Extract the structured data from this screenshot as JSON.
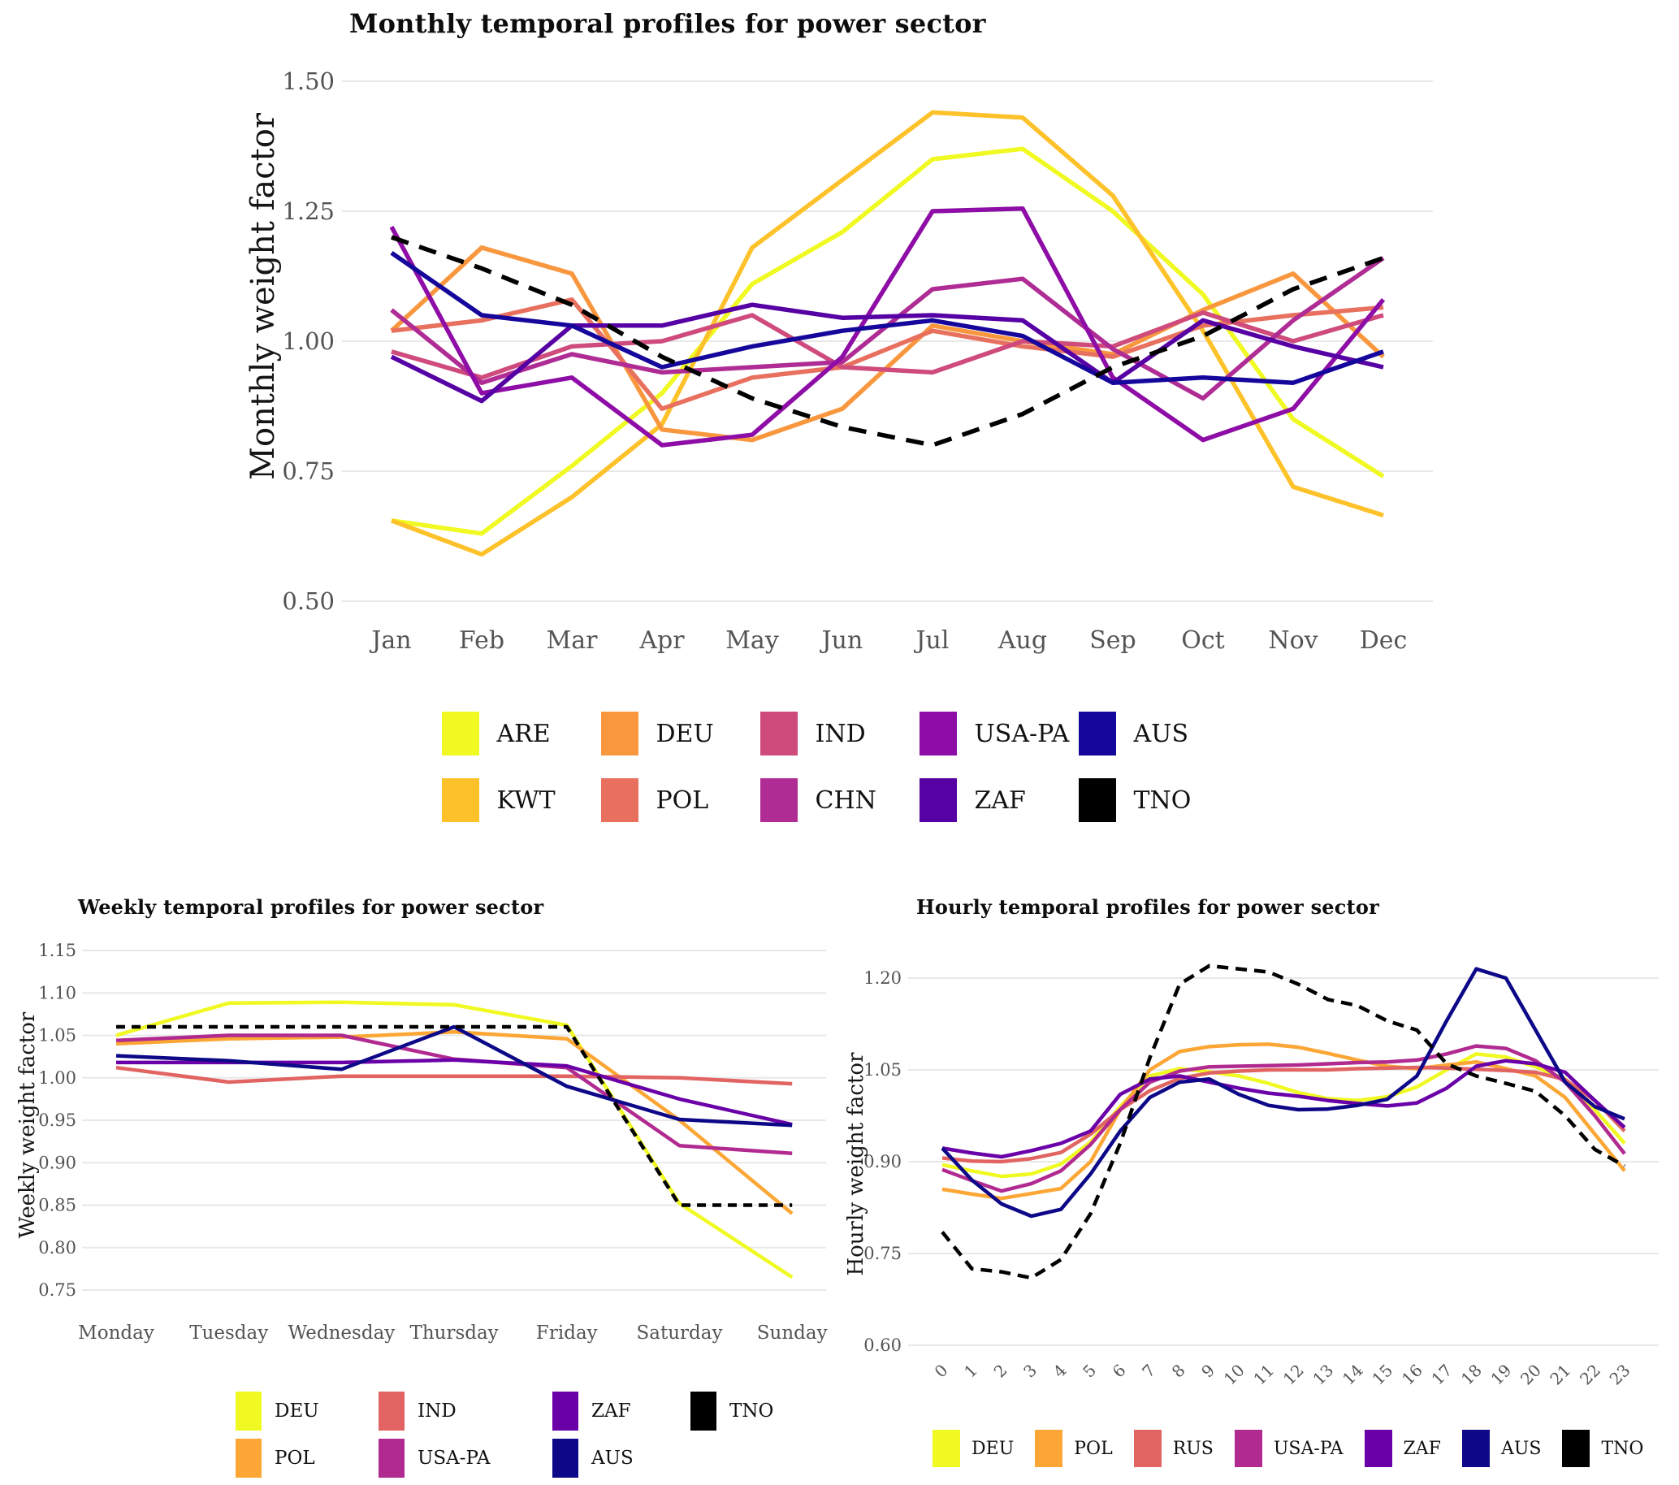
{
  "chart_data": [
    {
      "id": "monthly",
      "type": "line",
      "title": "Monthly temporal profiles for power sector",
      "xlabel": "",
      "ylabel": "Monthly weight factor",
      "categories": [
        "Jan",
        "Feb",
        "Mar",
        "Apr",
        "May",
        "Jun",
        "Jul",
        "Aug",
        "Sep",
        "Oct",
        "Nov",
        "Dec"
      ],
      "ytick_labels": [
        "1.50",
        "1.25",
        "1.00",
        "0.75",
        "0.50"
      ],
      "ytick_values": [
        1.5,
        1.25,
        1.0,
        0.75,
        0.5
      ],
      "ylim": [
        0.5,
        1.5
      ],
      "grid": "horizontal",
      "legend_position": "bottom",
      "legend_rows": [
        [
          "ARE",
          "DEU",
          "IND",
          "USA-PA",
          "AUS"
        ],
        [
          "KWT",
          "POL",
          "CHN",
          "ZAF",
          "TNO"
        ]
      ],
      "series": [
        {
          "name": "ARE",
          "color": "#F0F921",
          "style": "solid",
          "values": [
            0.655,
            0.63,
            0.76,
            0.9,
            1.11,
            1.21,
            1.35,
            1.37,
            1.25,
            1.09,
            0.85,
            0.74
          ]
        },
        {
          "name": "KWT",
          "color": "#FDC22A",
          "style": "solid",
          "values": [
            0.655,
            0.59,
            0.7,
            0.84,
            1.18,
            1.31,
            1.44,
            1.43,
            1.28,
            1.02,
            0.72,
            0.665
          ]
        },
        {
          "name": "DEU",
          "color": "#F9973F",
          "style": "solid",
          "values": [
            1.02,
            1.18,
            1.13,
            0.83,
            0.81,
            0.87,
            1.03,
            1.0,
            0.975,
            1.06,
            1.13,
            0.97
          ]
        },
        {
          "name": "POL",
          "color": "#E8705F",
          "style": "solid",
          "values": [
            1.02,
            1.04,
            1.08,
            0.87,
            0.93,
            0.95,
            1.02,
            0.99,
            0.97,
            1.03,
            1.05,
            1.065
          ]
        },
        {
          "name": "IND",
          "color": "#CE4B7C",
          "style": "solid",
          "values": [
            0.98,
            0.93,
            0.99,
            1.0,
            1.05,
            0.95,
            0.94,
            1.0,
            0.99,
            1.055,
            1.0,
            1.05
          ]
        },
        {
          "name": "CHN",
          "color": "#B02C95",
          "style": "solid",
          "values": [
            1.06,
            0.92,
            0.975,
            0.94,
            0.95,
            0.96,
            1.1,
            1.12,
            0.985,
            0.89,
            1.04,
            1.16
          ]
        },
        {
          "name": "USA-PA",
          "color": "#8E0DA6",
          "style": "solid",
          "values": [
            1.22,
            0.9,
            0.93,
            0.8,
            0.82,
            0.97,
            1.25,
            1.255,
            0.93,
            0.81,
            0.87,
            1.08
          ]
        },
        {
          "name": "ZAF",
          "color": "#5601A4",
          "style": "solid",
          "values": [
            0.97,
            0.885,
            1.03,
            1.03,
            1.07,
            1.045,
            1.05,
            1.04,
            0.92,
            1.04,
            0.99,
            0.95
          ]
        },
        {
          "name": "AUS",
          "color": "#15079B",
          "style": "solid",
          "values": [
            1.17,
            1.05,
            1.03,
            0.95,
            0.99,
            1.02,
            1.04,
            1.01,
            0.92,
            0.93,
            0.92,
            0.98
          ]
        },
        {
          "name": "TNO",
          "color": "#000000",
          "style": "dashed",
          "values": [
            1.2,
            1.14,
            1.07,
            0.97,
            0.89,
            0.835,
            0.8,
            0.86,
            0.95,
            1.01,
            1.1,
            1.16
          ]
        }
      ]
    },
    {
      "id": "weekly",
      "type": "line",
      "title": "Weekly temporal profiles for power sector",
      "xlabel": "",
      "ylabel": "Weekly weight factor",
      "categories": [
        "Monday",
        "Tuesday",
        "Wednesday",
        "Thursday",
        "Friday",
        "Saturday",
        "Sunday"
      ],
      "ytick_labels": [
        "1.15",
        "1.10",
        "1.05",
        "1.00",
        "0.95",
        "0.90",
        "0.85",
        "0.80",
        "0.75"
      ],
      "ytick_values": [
        1.15,
        1.1,
        1.05,
        1.0,
        0.95,
        0.9,
        0.85,
        0.8,
        0.75
      ],
      "ylim": [
        0.75,
        1.15
      ],
      "grid": "horizontal",
      "legend_position": "bottom",
      "legend_rows": [
        [
          "DEU",
          "IND",
          "ZAF",
          "TNO"
        ],
        [
          "POL",
          "USA-PA",
          "AUS"
        ]
      ],
      "series": [
        {
          "name": "DEU",
          "color": "#F0F921",
          "style": "solid",
          "values": [
            1.05,
            1.088,
            1.089,
            1.086,
            1.062,
            0.852,
            0.765
          ]
        },
        {
          "name": "POL",
          "color": "#FCA636",
          "style": "solid",
          "values": [
            1.04,
            1.046,
            1.048,
            1.054,
            1.046,
            0.95,
            0.84
          ]
        },
        {
          "name": "IND",
          "color": "#E16462",
          "style": "solid",
          "values": [
            1.012,
            0.995,
            1.002,
            1.002,
            1.002,
            1.0,
            0.993
          ]
        },
        {
          "name": "USA-PA",
          "color": "#B12A90",
          "style": "solid",
          "values": [
            1.044,
            1.05,
            1.05,
            1.022,
            1.012,
            0.92,
            0.911
          ]
        },
        {
          "name": "ZAF",
          "color": "#6A00A8",
          "style": "solid",
          "values": [
            1.018,
            1.018,
            1.018,
            1.021,
            1.014,
            0.975,
            0.945
          ]
        },
        {
          "name": "AUS",
          "color": "#0D0887",
          "style": "solid",
          "values": [
            1.026,
            1.02,
            1.01,
            1.06,
            0.99,
            0.951,
            0.944
          ]
        },
        {
          "name": "TNO",
          "color": "#000000",
          "style": "dashed",
          "values": [
            1.06,
            1.06,
            1.06,
            1.06,
            1.06,
            0.85,
            0.85
          ]
        }
      ]
    },
    {
      "id": "hourly",
      "type": "line",
      "title": "Hourly temporal profiles for power sector",
      "xlabel": "",
      "ylabel": "Hourly weight factor",
      "categories": [
        "0",
        "1",
        "2",
        "3",
        "4",
        "5",
        "6",
        "7",
        "8",
        "9",
        "10",
        "11",
        "12",
        "13",
        "14",
        "15",
        "16",
        "17",
        "18",
        "19",
        "20",
        "21",
        "22",
        "23"
      ],
      "ytick_labels": [
        "1.20",
        "1.05",
        "0.90",
        "0.75",
        "0.60"
      ],
      "ytick_values": [
        1.2,
        1.05,
        0.9,
        0.75,
        0.6
      ],
      "ylim": [
        0.6,
        1.2
      ],
      "grid": "horizontal",
      "legend_position": "bottom",
      "legend_rows": [
        [
          "DEU",
          "POL",
          "RUS",
          "USA-PA",
          "ZAF",
          "AUS",
          "TNO"
        ]
      ],
      "series": [
        {
          "name": "DEU",
          "color": "#F0F921",
          "style": "solid",
          "values": [
            0.895,
            0.885,
            0.876,
            0.88,
            0.896,
            0.932,
            0.99,
            1.04,
            1.052,
            1.047,
            1.04,
            1.028,
            1.013,
            1.003,
            1.0,
            1.006,
            1.022,
            1.05,
            1.076,
            1.071,
            1.055,
            1.035,
            0.985,
            0.93
          ]
        },
        {
          "name": "POL",
          "color": "#FCA636",
          "style": "solid",
          "values": [
            0.855,
            0.847,
            0.84,
            0.848,
            0.856,
            0.9,
            0.985,
            1.05,
            1.08,
            1.088,
            1.091,
            1.092,
            1.087,
            1.077,
            1.066,
            1.056,
            1.052,
            1.058,
            1.063,
            1.052,
            1.04,
            1.005,
            0.945,
            0.885
          ]
        },
        {
          "name": "RUS",
          "color": "#E16462",
          "style": "solid",
          "values": [
            0.906,
            0.901,
            0.9,
            0.905,
            0.915,
            0.945,
            0.985,
            1.016,
            1.036,
            1.045,
            1.048,
            1.05,
            1.05,
            1.05,
            1.052,
            1.053,
            1.054,
            1.053,
            1.051,
            1.049,
            1.046,
            1.034,
            1.0,
            0.95
          ]
        },
        {
          "name": "USA-PA",
          "color": "#B12A90",
          "style": "solid",
          "values": [
            0.887,
            0.869,
            0.852,
            0.864,
            0.885,
            0.928,
            0.985,
            1.03,
            1.048,
            1.055,
            1.056,
            1.057,
            1.058,
            1.06,
            1.062,
            1.063,
            1.066,
            1.076,
            1.089,
            1.085,
            1.065,
            1.03,
            0.975,
            0.913
          ]
        },
        {
          "name": "ZAF",
          "color": "#6A00A8",
          "style": "solid",
          "values": [
            0.922,
            0.914,
            0.908,
            0.918,
            0.93,
            0.95,
            1.01,
            1.035,
            1.04,
            1.03,
            1.02,
            1.012,
            1.007,
            1.0,
            0.995,
            0.991,
            0.996,
            1.02,
            1.056,
            1.065,
            1.06,
            1.046,
            1.0,
            0.956
          ]
        },
        {
          "name": "AUS",
          "color": "#0D0887",
          "style": "solid",
          "values": [
            0.922,
            0.87,
            0.831,
            0.811,
            0.822,
            0.88,
            0.95,
            1.005,
            1.03,
            1.035,
            1.01,
            0.992,
            0.985,
            0.986,
            0.992,
            1.002,
            1.04,
            1.13,
            1.215,
            1.2,
            1.115,
            1.03,
            0.99,
            0.97
          ]
        },
        {
          "name": "TNO",
          "color": "#000000",
          "style": "dashed",
          "values": [
            0.785,
            0.725,
            0.72,
            0.71,
            0.74,
            0.815,
            0.93,
            1.07,
            1.19,
            1.22,
            1.215,
            1.21,
            1.19,
            1.165,
            1.155,
            1.13,
            1.115,
            1.06,
            1.04,
            1.028,
            1.015,
            0.975,
            0.92,
            0.893
          ]
        }
      ]
    }
  ]
}
